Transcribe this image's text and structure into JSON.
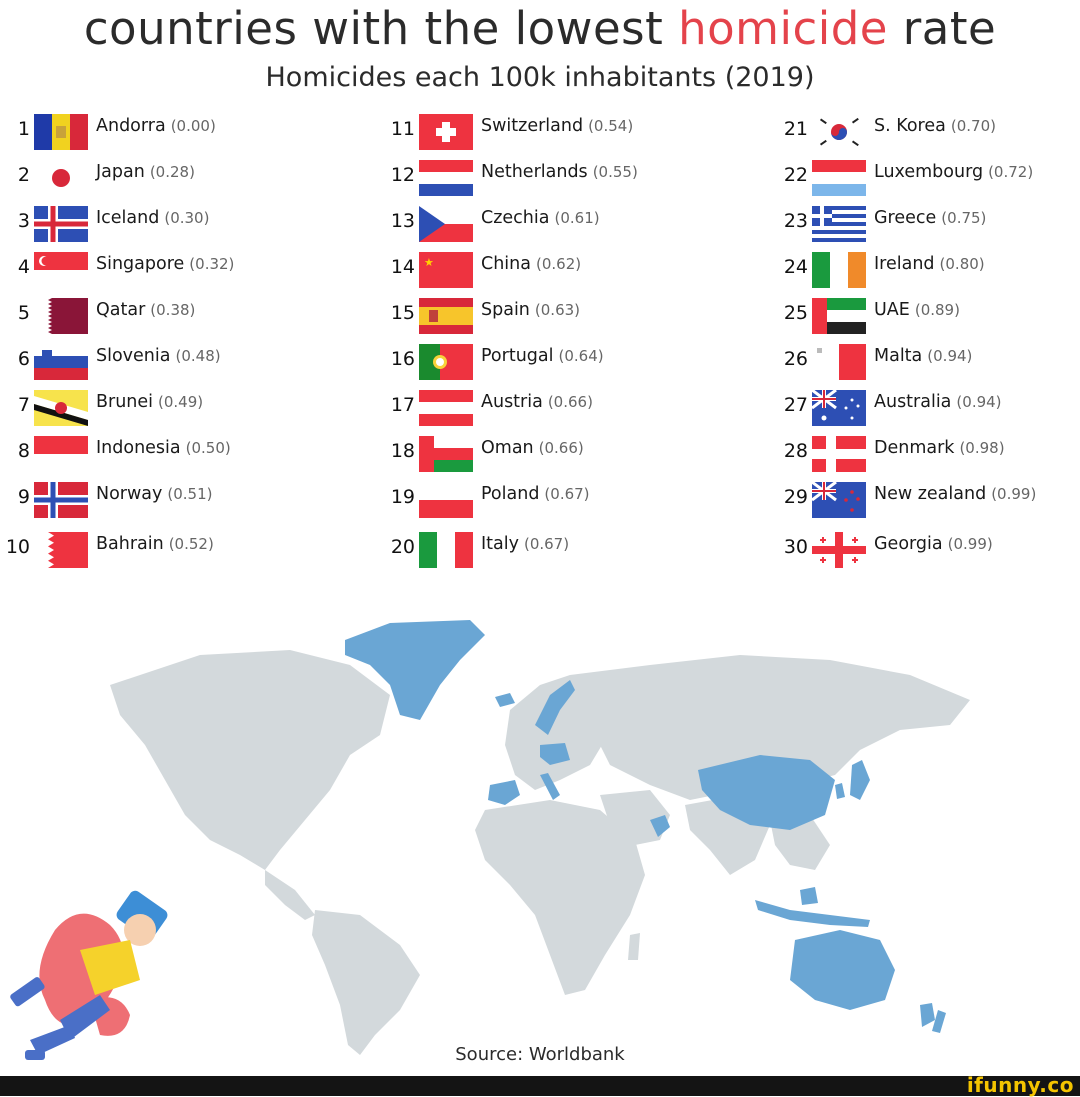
{
  "title": {
    "pre": "countries with the lowest ",
    "highlight": "homicide",
    "post": " rate"
  },
  "subtitle": "Homicides each 100k inhabitants (2019)",
  "colors": {
    "highlight": "#e4434b",
    "map_land": "#d3d9dc",
    "map_highlight": "#6aa6d4"
  },
  "countries": [
    {
      "rank": "1",
      "name": "Andorra",
      "rate": "(0.00)",
      "flag": "andorra-flag-icon"
    },
    {
      "rank": "2",
      "name": "Japan",
      "rate": "(0.28)",
      "flag": "japan-flag-icon"
    },
    {
      "rank": "3",
      "name": "Iceland",
      "rate": "(0.30)",
      "flag": "iceland-flag-icon"
    },
    {
      "rank": "4",
      "name": "Singapore",
      "rate": "(0.32)",
      "flag": "singapore-flag-icon"
    },
    {
      "rank": "5",
      "name": "Qatar",
      "rate": "(0.38)",
      "flag": "qatar-flag-icon"
    },
    {
      "rank": "6",
      "name": "Slovenia",
      "rate": "(0.48)",
      "flag": "slovenia-flag-icon"
    },
    {
      "rank": "7",
      "name": "Brunei",
      "rate": "(0.49)",
      "flag": "brunei-flag-icon"
    },
    {
      "rank": "8",
      "name": "Indonesia",
      "rate": "(0.50)",
      "flag": "indonesia-flag-icon"
    },
    {
      "rank": "9",
      "name": "Norway",
      "rate": "(0.51)",
      "flag": "norway-flag-icon"
    },
    {
      "rank": "10",
      "name": "Bahrain",
      "rate": "(0.52)",
      "flag": "bahrain-flag-icon"
    },
    {
      "rank": "11",
      "name": "Switzerland",
      "rate": "(0.54)",
      "flag": "switzerland-flag-icon"
    },
    {
      "rank": "12",
      "name": "Netherlands",
      "rate": "(0.55)",
      "flag": "netherlands-flag-icon"
    },
    {
      "rank": "13",
      "name": "Czechia",
      "rate": "(0.61)",
      "flag": "czechia-flag-icon"
    },
    {
      "rank": "14",
      "name": "China",
      "rate": "(0.62)",
      "flag": "china-flag-icon"
    },
    {
      "rank": "15",
      "name": "Spain",
      "rate": "(0.63)",
      "flag": "spain-flag-icon"
    },
    {
      "rank": "16",
      "name": "Portugal",
      "rate": "(0.64)",
      "flag": "portugal-flag-icon"
    },
    {
      "rank": "17",
      "name": "Austria",
      "rate": "(0.66)",
      "flag": "austria-flag-icon"
    },
    {
      "rank": "18",
      "name": "Oman",
      "rate": "(0.66)",
      "flag": "oman-flag-icon"
    },
    {
      "rank": "19",
      "name": "Poland",
      "rate": "(0.67)",
      "flag": "poland-flag-icon"
    },
    {
      "rank": "20",
      "name": "Italy",
      "rate": "(0.67)",
      "flag": "italy-flag-icon"
    },
    {
      "rank": "21",
      "name": "S. Korea",
      "rate": "(0.70)",
      "flag": "south-korea-flag-icon"
    },
    {
      "rank": "22",
      "name": "Luxembourg",
      "rate": "(0.72)",
      "flag": "luxembourg-flag-icon"
    },
    {
      "rank": "23",
      "name": "Greece",
      "rate": "(0.75)",
      "flag": "greece-flag-icon"
    },
    {
      "rank": "24",
      "name": "Ireland",
      "rate": "(0.80)",
      "flag": "ireland-flag-icon"
    },
    {
      "rank": "25",
      "name": "UAE",
      "rate": "(0.89)",
      "flag": "uae-flag-icon"
    },
    {
      "rank": "26",
      "name": "Malta",
      "rate": "(0.94)",
      "flag": "malta-flag-icon"
    },
    {
      "rank": "27",
      "name": "Australia",
      "rate": "(0.94)",
      "flag": "australia-flag-icon"
    },
    {
      "rank": "28",
      "name": "Denmark",
      "rate": "(0.98)",
      "flag": "denmark-flag-icon"
    },
    {
      "rank": "29",
      "name": "New zealand",
      "rate": "(0.99)",
      "flag": "new-zealand-flag-icon"
    },
    {
      "rank": "30",
      "name": "Georgia",
      "rate": "(0.99)",
      "flag": "georgia-flag-icon"
    }
  ],
  "map_icon": "world-map-icon",
  "illustration_icon": "fallen-person-icon",
  "source": "Source: Worldbank",
  "watermark": "ifunny.co"
}
